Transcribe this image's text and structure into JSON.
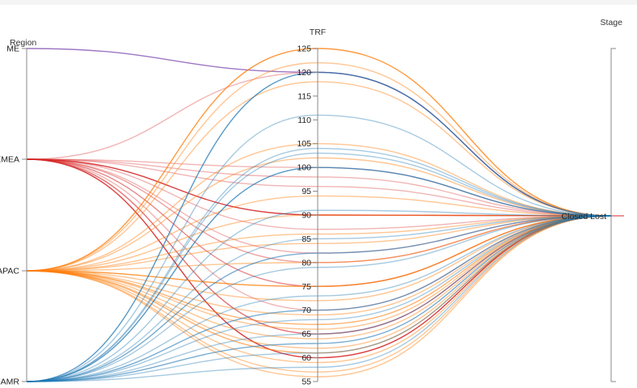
{
  "chart_data": {
    "type": "parallel-coordinates",
    "dimensions": [
      {
        "key": "region",
        "title": "Region",
        "scale": "ordinal",
        "values": [
          "ME",
          "EMEA",
          "APAC",
          "AMR"
        ]
      },
      {
        "key": "trf",
        "title": "TRF",
        "scale": "linear",
        "range": [
          55,
          125
        ],
        "ticks": [
          125,
          120,
          115,
          110,
          105,
          100,
          95,
          90,
          85,
          80,
          75,
          70,
          65,
          60,
          55
        ]
      },
      {
        "key": "stage",
        "title": "Stage",
        "scale": "ordinal",
        "values": [
          "Closed Lost"
        ]
      }
    ],
    "region_colors": {
      "ME": "#9467bd",
      "EMEA": "#d62728",
      "APAC": "#ff7f0e",
      "AMR": "#1f77b4"
    },
    "records": [
      {
        "region": "ME",
        "trf": 120,
        "stage": "Closed Lost",
        "opacity": 0.9
      },
      {
        "region": "EMEA",
        "trf": 120,
        "stage": "Closed Lost",
        "opacity": 0.35
      },
      {
        "region": "EMEA",
        "trf": 100,
        "stage": "Closed Lost",
        "opacity": 0.35
      },
      {
        "region": "EMEA",
        "trf": 98,
        "stage": "Closed Lost",
        "opacity": 0.35
      },
      {
        "region": "EMEA",
        "trf": 96,
        "stage": "Closed Lost",
        "opacity": 0.35
      },
      {
        "region": "EMEA",
        "trf": 90,
        "stage": "Closed Lost",
        "opacity": 0.9
      },
      {
        "region": "EMEA",
        "trf": 87,
        "stage": "Closed Lost",
        "opacity": 0.35
      },
      {
        "region": "EMEA",
        "trf": 82,
        "stage": "Closed Lost",
        "opacity": 0.35
      },
      {
        "region": "EMEA",
        "trf": 80,
        "stage": "Closed Lost",
        "opacity": 0.45
      },
      {
        "region": "EMEA",
        "trf": 75,
        "stage": "Closed Lost",
        "opacity": 0.55
      },
      {
        "region": "EMEA",
        "trf": 70,
        "stage": "Closed Lost",
        "opacity": 0.35
      },
      {
        "region": "EMEA",
        "trf": 65,
        "stage": "Closed Lost",
        "opacity": 0.65
      },
      {
        "region": "EMEA",
        "trf": 60,
        "stage": "Closed Lost",
        "opacity": 0.9
      },
      {
        "region": "APAC",
        "trf": 125,
        "stage": "Closed Lost",
        "opacity": 0.8
      },
      {
        "region": "APAC",
        "trf": 122,
        "stage": "Closed Lost",
        "opacity": 0.45
      },
      {
        "region": "APAC",
        "trf": 118,
        "stage": "Closed Lost",
        "opacity": 0.45
      },
      {
        "region": "APAC",
        "trf": 105,
        "stage": "Closed Lost",
        "opacity": 0.45
      },
      {
        "region": "APAC",
        "trf": 102,
        "stage": "Closed Lost",
        "opacity": 0.45
      },
      {
        "region": "APAC",
        "trf": 94,
        "stage": "Closed Lost",
        "opacity": 0.45
      },
      {
        "region": "APAC",
        "trf": 90,
        "stage": "Closed Lost",
        "opacity": 0.45
      },
      {
        "region": "APAC",
        "trf": 86,
        "stage": "Closed Lost",
        "opacity": 0.45
      },
      {
        "region": "APAC",
        "trf": 84,
        "stage": "Closed Lost",
        "opacity": 0.45
      },
      {
        "region": "APAC",
        "trf": 80,
        "stage": "Closed Lost",
        "opacity": 0.45
      },
      {
        "region": "APAC",
        "trf": 75,
        "stage": "Closed Lost",
        "opacity": 0.8
      },
      {
        "region": "APAC",
        "trf": 72,
        "stage": "Closed Lost",
        "opacity": 0.45
      },
      {
        "region": "APAC",
        "trf": 69,
        "stage": "Closed Lost",
        "opacity": 0.45
      },
      {
        "region": "APAC",
        "trf": 67,
        "stage": "Closed Lost",
        "opacity": 0.6
      },
      {
        "region": "APAC",
        "trf": 66,
        "stage": "Closed Lost",
        "opacity": 0.45
      },
      {
        "region": "APAC",
        "trf": 64,
        "stage": "Closed Lost",
        "opacity": 0.45
      },
      {
        "region": "APAC",
        "trf": 62,
        "stage": "Closed Lost",
        "opacity": 0.45
      },
      {
        "region": "APAC",
        "trf": 61,
        "stage": "Closed Lost",
        "opacity": 0.6
      },
      {
        "region": "APAC",
        "trf": 59,
        "stage": "Closed Lost",
        "opacity": 0.45
      },
      {
        "region": "APAC",
        "trf": 57,
        "stage": "Closed Lost",
        "opacity": 0.45
      },
      {
        "region": "APAC",
        "trf": 56,
        "stage": "Closed Lost",
        "opacity": 0.45
      },
      {
        "region": "AMR",
        "trf": 120,
        "stage": "Closed Lost",
        "opacity": 0.75
      },
      {
        "region": "AMR",
        "trf": 111,
        "stage": "Closed Lost",
        "opacity": 0.4
      },
      {
        "region": "AMR",
        "trf": 104,
        "stage": "Closed Lost",
        "opacity": 0.4
      },
      {
        "region": "AMR",
        "trf": 103,
        "stage": "Closed Lost",
        "opacity": 0.4
      },
      {
        "region": "AMR",
        "trf": 100,
        "stage": "Closed Lost",
        "opacity": 0.75
      },
      {
        "region": "AMR",
        "trf": 91,
        "stage": "Closed Lost",
        "opacity": 0.4
      },
      {
        "region": "AMR",
        "trf": 85,
        "stage": "Closed Lost",
        "opacity": 0.4
      },
      {
        "region": "AMR",
        "trf": 82,
        "stage": "Closed Lost",
        "opacity": 0.6
      },
      {
        "region": "AMR",
        "trf": 79,
        "stage": "Closed Lost",
        "opacity": 0.4
      },
      {
        "region": "AMR",
        "trf": 73,
        "stage": "Closed Lost",
        "opacity": 0.4
      },
      {
        "region": "AMR",
        "trf": 70,
        "stage": "Closed Lost",
        "opacity": 0.6
      },
      {
        "region": "AMR",
        "trf": 68,
        "stage": "Closed Lost",
        "opacity": 0.4
      },
      {
        "region": "AMR",
        "trf": 65,
        "stage": "Closed Lost",
        "opacity": 0.4
      },
      {
        "region": "AMR",
        "trf": 63,
        "stage": "Closed Lost",
        "opacity": 0.6
      },
      {
        "region": "AMR",
        "trf": 61,
        "stage": "Closed Lost",
        "opacity": 0.4
      },
      {
        "region": "AMR",
        "trf": 58,
        "stage": "Closed Lost",
        "opacity": 0.4
      }
    ],
    "grid": false,
    "legend": "none"
  }
}
